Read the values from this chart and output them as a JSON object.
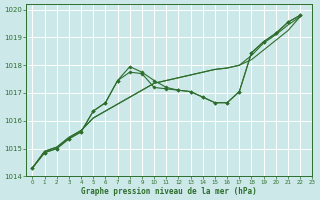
{
  "xlabel": "Graphe pression niveau de la mer (hPa)",
  "bg_color": "#cce8e8",
  "grid_color": "#ffffff",
  "line_color": "#2d6e2d",
  "xlim": [
    -0.5,
    23
  ],
  "ylim": [
    1014,
    1020.2
  ],
  "xticks": [
    0,
    1,
    2,
    3,
    4,
    5,
    6,
    7,
    8,
    9,
    10,
    11,
    12,
    13,
    14,
    15,
    16,
    17,
    18,
    19,
    20,
    21,
    22,
    23
  ],
  "yticks": [
    1014,
    1015,
    1016,
    1017,
    1018,
    1019,
    1020
  ],
  "line1_x": [
    0,
    1,
    2,
    3,
    4,
    5,
    6,
    7,
    8,
    9,
    10,
    11,
    12,
    13,
    14,
    15,
    16,
    17,
    18,
    19,
    20,
    21,
    22
  ],
  "line1_y": [
    1014.3,
    1014.9,
    1015.05,
    1015.4,
    1015.65,
    1016.1,
    1016.35,
    1016.6,
    1016.85,
    1017.1,
    1017.35,
    1017.45,
    1017.55,
    1017.65,
    1017.75,
    1017.85,
    1017.9,
    1018.0,
    1018.2,
    1018.55,
    1018.9,
    1019.25,
    1019.75
  ],
  "line2_x": [
    0,
    1,
    2,
    3,
    4,
    5,
    6,
    7,
    8,
    9,
    10,
    11,
    12,
    13,
    14,
    15,
    16,
    17,
    18,
    19,
    20,
    21,
    22
  ],
  "line2_y": [
    1014.3,
    1014.9,
    1015.05,
    1015.4,
    1015.65,
    1016.1,
    1016.35,
    1016.6,
    1016.85,
    1017.1,
    1017.35,
    1017.45,
    1017.55,
    1017.65,
    1017.75,
    1017.85,
    1017.9,
    1018.0,
    1018.35,
    1018.8,
    1019.1,
    1019.45,
    1019.75
  ],
  "line3_x": [
    0,
    1,
    2,
    3,
    4,
    5,
    6,
    7,
    8,
    9,
    10,
    11,
    12,
    13,
    14,
    15,
    16,
    17,
    18,
    19,
    20,
    21,
    22
  ],
  "line3_y": [
    1014.3,
    1014.85,
    1015.0,
    1015.35,
    1015.6,
    1016.35,
    1016.65,
    1017.45,
    1017.75,
    1017.7,
    1017.2,
    1017.15,
    1017.1,
    1017.05,
    1016.85,
    1016.65,
    1016.65,
    1017.05,
    1018.45,
    1018.85,
    1019.15,
    1019.55,
    1019.8
  ],
  "line4_x": [
    0,
    1,
    2,
    3,
    4,
    5,
    6,
    7,
    8,
    9,
    10,
    11,
    12,
    13,
    14,
    15,
    16,
    17,
    18,
    19,
    20,
    21,
    22
  ],
  "line4_y": [
    1014.3,
    1014.85,
    1015.0,
    1015.35,
    1015.6,
    1016.35,
    1016.65,
    1017.45,
    1017.95,
    1017.75,
    1017.45,
    1017.2,
    1017.1,
    1017.05,
    1016.85,
    1016.65,
    1016.65,
    1017.05,
    1018.45,
    1018.85,
    1019.15,
    1019.55,
    1019.8
  ]
}
